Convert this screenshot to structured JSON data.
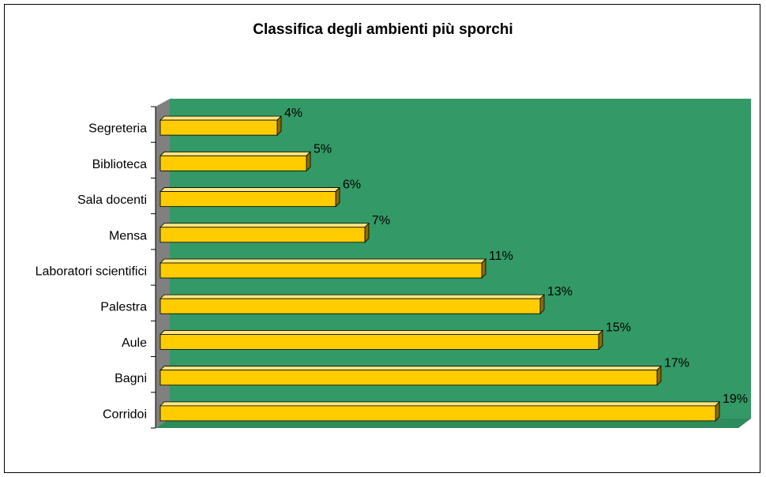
{
  "chart_data": {
    "type": "bar",
    "orientation": "horizontal",
    "three_d": true,
    "title": "Classifica degli ambienti più sporchi",
    "categories": [
      "Segreteria",
      "Biblioteca",
      "Sala docenti",
      "Mensa",
      "Laboratori scientifici",
      "Palestra",
      "Aule",
      "Bagni",
      "Corridoi"
    ],
    "values": [
      4,
      5,
      6,
      7,
      11,
      13,
      15,
      17,
      19
    ],
    "data_labels": [
      "4%",
      "5%",
      "6%",
      "7%",
      "11%",
      "13%",
      "15%",
      "17%",
      "19%"
    ],
    "value_unit": "%",
    "xlim": [
      0,
      19
    ],
    "legend": "none",
    "gridlines": false,
    "colors": {
      "plot_background": "#339966",
      "plot_floor": "#2e8b5c",
      "side_wall": "#808080",
      "bar_front": "#ffcc00",
      "bar_top": "#ffe680",
      "bar_side": "#8a6d00",
      "bar_outline": "#000000"
    }
  }
}
